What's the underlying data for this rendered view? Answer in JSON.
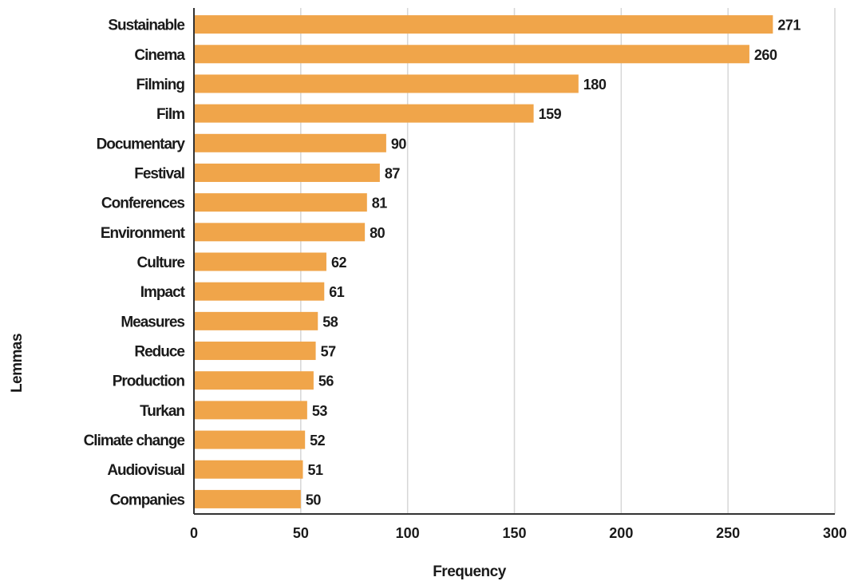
{
  "chart_data": {
    "type": "bar",
    "orientation": "horizontal",
    "categories": [
      "Sustainable",
      "Cinema",
      "Filming",
      "Film",
      "Documentary",
      "Festival",
      "Conferences",
      "Environment",
      "Culture",
      "Impact",
      "Measures",
      "Reduce",
      "Production",
      "Turkan",
      "Climate change",
      "Audiovisual",
      "Companies"
    ],
    "values": [
      271,
      260,
      180,
      159,
      90,
      87,
      81,
      80,
      62,
      61,
      58,
      57,
      56,
      53,
      52,
      51,
      50
    ],
    "xlabel": "Frequency",
    "ylabel": "Lemmas",
    "xlim": [
      0,
      300
    ],
    "xticks": [
      0,
      50,
      100,
      150,
      200,
      250,
      300
    ],
    "grid": "vertical",
    "bar_color": "#F0A54A",
    "show_data_labels": true
  }
}
